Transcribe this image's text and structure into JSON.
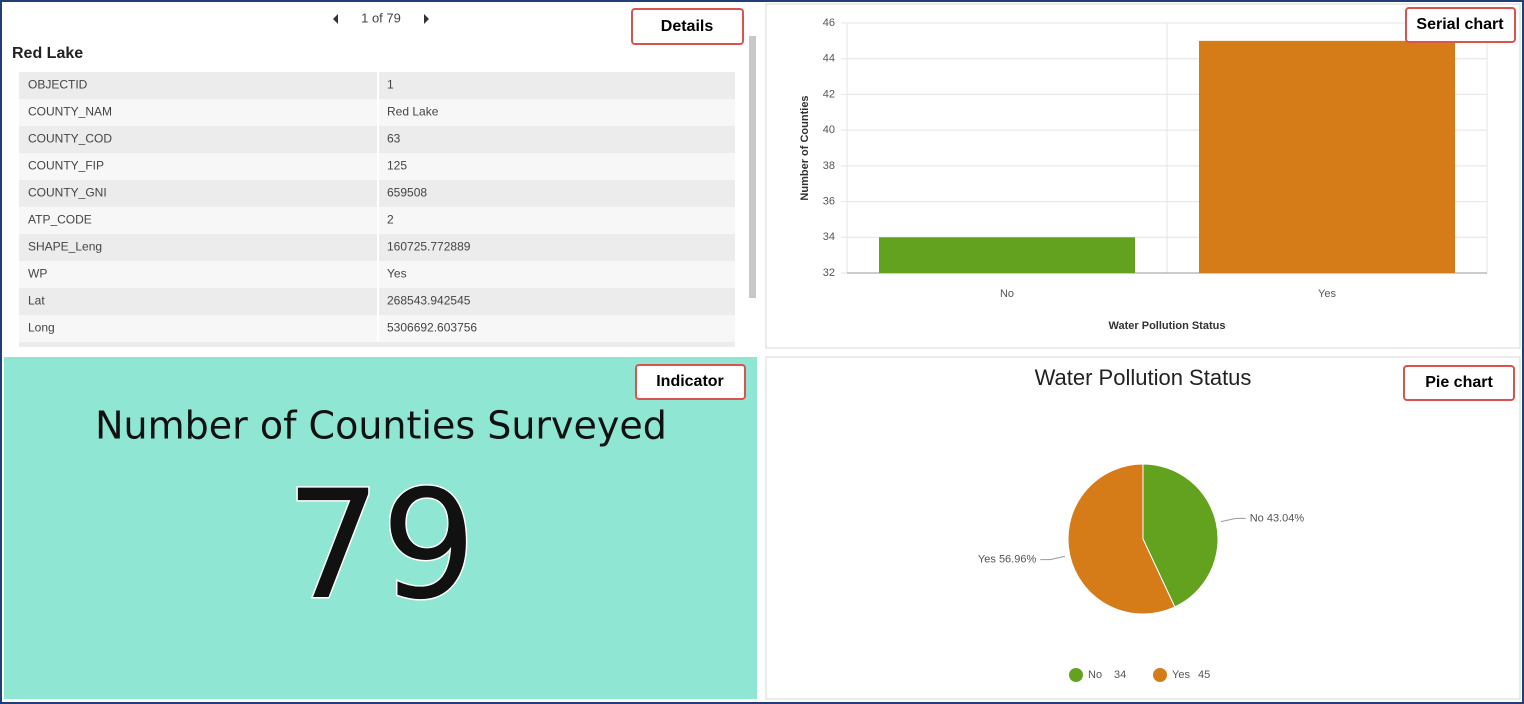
{
  "callouts": {
    "details": "Details",
    "serial": "Serial chart",
    "indicator": "Indicator",
    "pie": "Pie chart"
  },
  "details": {
    "pager": "1 of 79",
    "title": "Red Lake",
    "rows": [
      [
        "OBJECTID",
        "1"
      ],
      [
        "COUNTY_NAM",
        "Red Lake"
      ],
      [
        "COUNTY_COD",
        "63"
      ],
      [
        "COUNTY_FIP",
        "125"
      ],
      [
        "COUNTY_GNI",
        "659508"
      ],
      [
        "ATP_CODE",
        "2"
      ],
      [
        "SHAPE_Leng",
        "160725.772889"
      ],
      [
        "WP",
        "Yes"
      ],
      [
        "Lat",
        "268543.942545"
      ],
      [
        "Long",
        "5306692.603756"
      ]
    ]
  },
  "indicator": {
    "title": "Number of Counties Surveyed",
    "value": 79
  },
  "chart_data": [
    {
      "type": "bar",
      "categories": [
        "No",
        "Yes"
      ],
      "values": [
        34,
        45
      ],
      "colors": [
        "#62a21e",
        "#d57b18"
      ],
      "x_label": "Water Pollution Status",
      "y_label": "Number of Counties",
      "ylim": [
        32,
        46
      ],
      "yticks": [
        32,
        34,
        36,
        38,
        40,
        42,
        44,
        46
      ],
      "grid": true
    },
    {
      "type": "pie",
      "title": "Water Pollution Status",
      "categories": [
        "No",
        "Yes"
      ],
      "values": [
        34,
        45
      ],
      "slice_labels": [
        "43.04%",
        "56.96%"
      ],
      "colors": [
        "#62a21e",
        "#d57b18"
      ],
      "legend": "bottom"
    }
  ]
}
